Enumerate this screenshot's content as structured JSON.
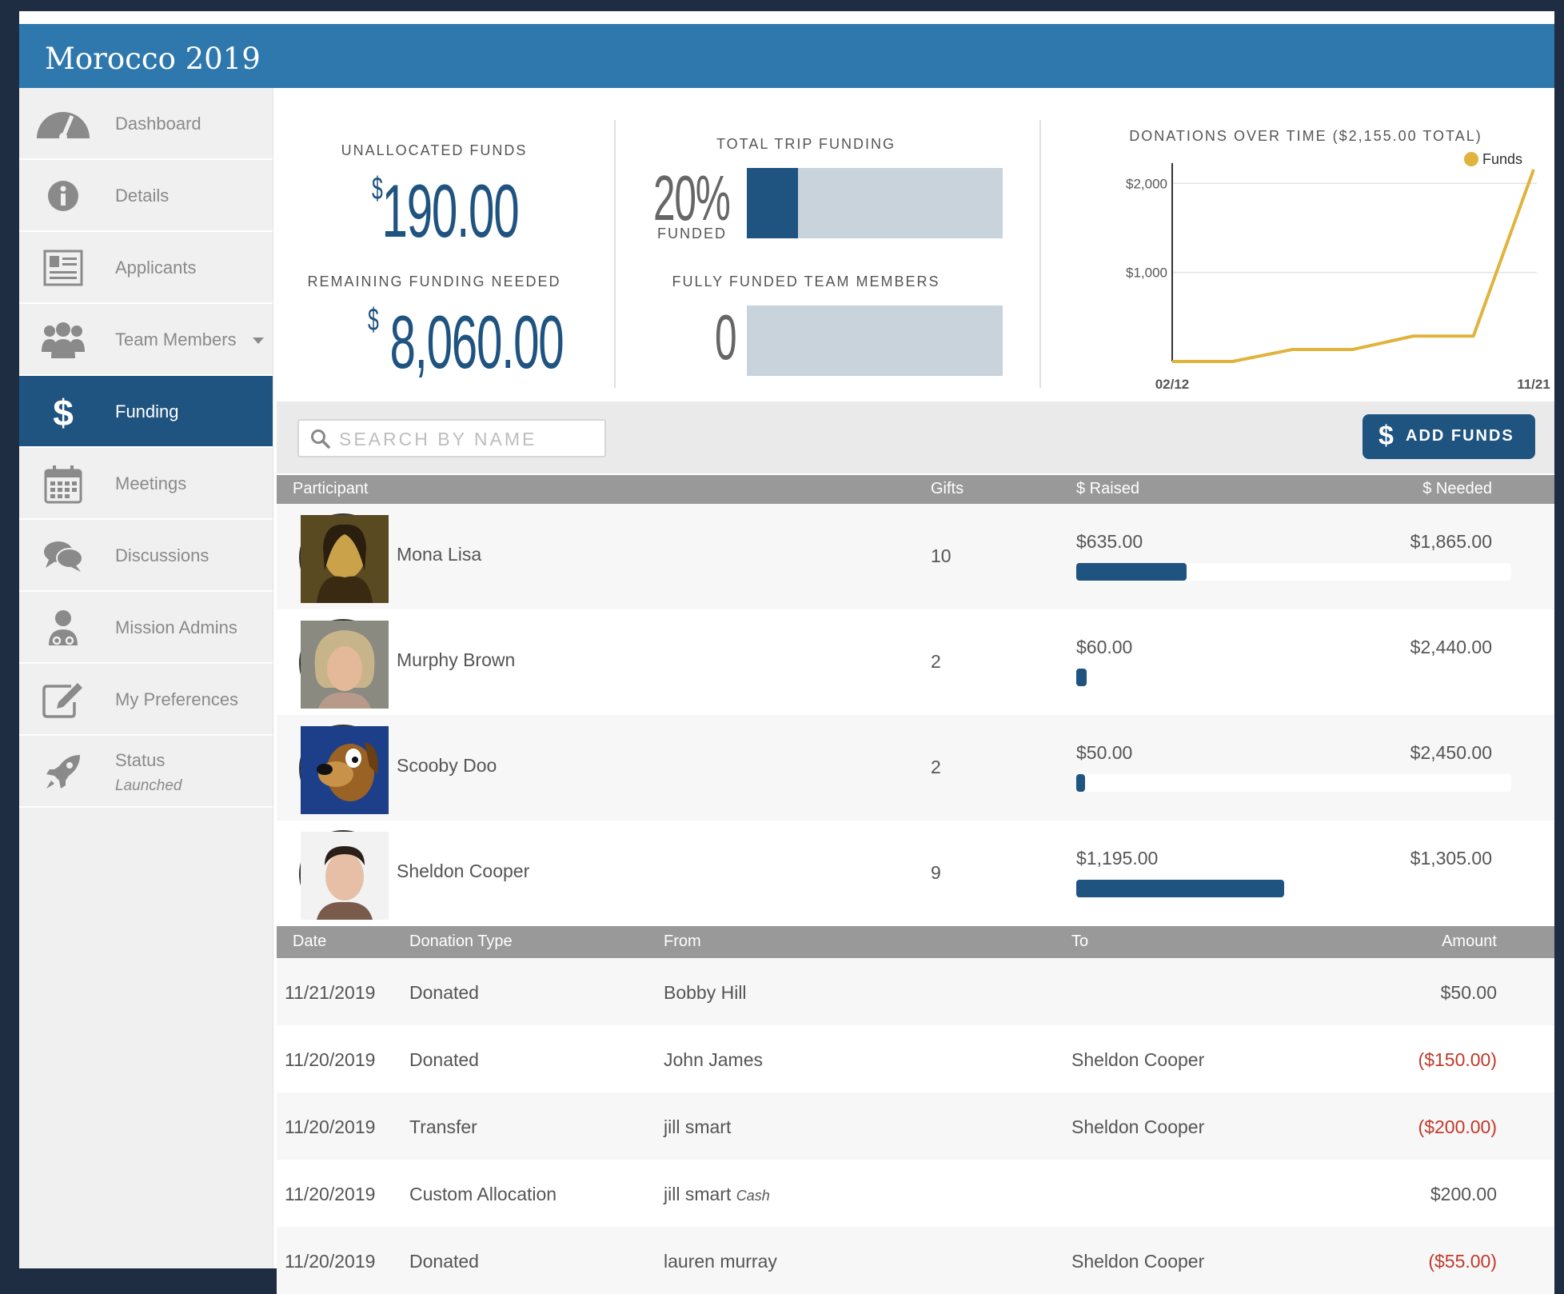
{
  "app": {
    "title": "Morocco 2019"
  },
  "sidebar": {
    "items": [
      {
        "label": "Dashboard",
        "icon": "speedometer-icon"
      },
      {
        "label": "Details",
        "icon": "info-icon"
      },
      {
        "label": "Applicants",
        "icon": "id-card-icon"
      },
      {
        "label": "Team Members",
        "icon": "group-icon"
      },
      {
        "label": "Funding",
        "icon": "dollar-icon"
      },
      {
        "label": "Meetings",
        "icon": "calendar-icon"
      },
      {
        "label": "Discussions",
        "icon": "chat-bubbles-icon"
      },
      {
        "label": "Mission Admins",
        "icon": "admin-user-icon"
      },
      {
        "label": "My Preferences",
        "icon": "edit-icon"
      },
      {
        "label": "Status",
        "sub": "Launched",
        "icon": "rocket-icon"
      }
    ],
    "active_index": 4
  },
  "stats": {
    "unallocated_label": "UNALLOCATED FUNDS",
    "unallocated_currency": "$",
    "unallocated_value": "190.00",
    "remaining_label": "REMAINING FUNDING NEEDED",
    "remaining_currency": "$",
    "remaining_value": "8,060.00",
    "trip_label": "TOTAL TRIP FUNDING",
    "trip_percent_text": "20%",
    "trip_percent": 0.2,
    "funded_label": "FUNDED",
    "members_label": "FULLY FUNDED TEAM MEMBERS",
    "members_value": "0",
    "members_fraction": 0
  },
  "chart_data": {
    "type": "line",
    "title": "DONATIONS OVER TIME ($2,155.00 TOTAL)",
    "legend": {
      "position": "top-right",
      "entries": [
        "Funds"
      ]
    },
    "x_tick_labels": [
      "02/12",
      "11/21"
    ],
    "y_tick_labels": [
      "$2,000",
      "$1,000"
    ],
    "ylim": [
      0,
      2155
    ],
    "grid": true,
    "series": [
      {
        "name": "Funds",
        "color": "#e0b33c",
        "values": [
          0,
          0,
          135,
          135,
          285,
          285,
          2155
        ]
      }
    ]
  },
  "toolbar": {
    "search_placeholder": "SEARCH BY NAME",
    "add_funds_label": "ADD FUNDS",
    "add_funds_symbol": "$"
  },
  "participants": {
    "headers": {
      "participant": "Participant",
      "gifts": "Gifts",
      "raised": "$ Raised",
      "needed": "$ Needed"
    },
    "rows": [
      {
        "name": "Mona Lisa",
        "gifts": "10",
        "raised": "$635.00",
        "needed": "$1,865.00",
        "progress": 0.254
      },
      {
        "name": "Murphy Brown",
        "gifts": "2",
        "raised": "$60.00",
        "needed": "$2,440.00",
        "progress": 0.024
      },
      {
        "name": "Scooby Doo",
        "gifts": "2",
        "raised": "$50.00",
        "needed": "$2,450.00",
        "progress": 0.02
      },
      {
        "name": "Sheldon Cooper",
        "gifts": "9",
        "raised": "$1,195.00",
        "needed": "$1,305.00",
        "progress": 0.478
      }
    ]
  },
  "donations": {
    "headers": {
      "date": "Date",
      "type": "Donation Type",
      "from": "From",
      "to": "To",
      "amount": "Amount"
    },
    "rows": [
      {
        "date": "11/21/2019",
        "type": "Donated",
        "from": "Bobby Hill",
        "from_note": "",
        "to": "",
        "amount": "$50.00",
        "negative": false
      },
      {
        "date": "11/20/2019",
        "type": "Donated",
        "from": "John James",
        "from_note": "",
        "to": "Sheldon Cooper",
        "amount": "($150.00)",
        "negative": true
      },
      {
        "date": "11/20/2019",
        "type": "Transfer",
        "from": "jill smart",
        "from_note": "",
        "to": "Sheldon Cooper",
        "amount": "($200.00)",
        "negative": true
      },
      {
        "date": "11/20/2019",
        "type": "Custom Allocation",
        "from": "jill smart",
        "from_note": "Cash",
        "to": "",
        "amount": "$200.00",
        "negative": false
      },
      {
        "date": "11/20/2019",
        "type": "Donated",
        "from": "lauren murray",
        "from_note": "",
        "to": "Sheldon Cooper",
        "amount": "($55.00)",
        "negative": true
      }
    ]
  }
}
